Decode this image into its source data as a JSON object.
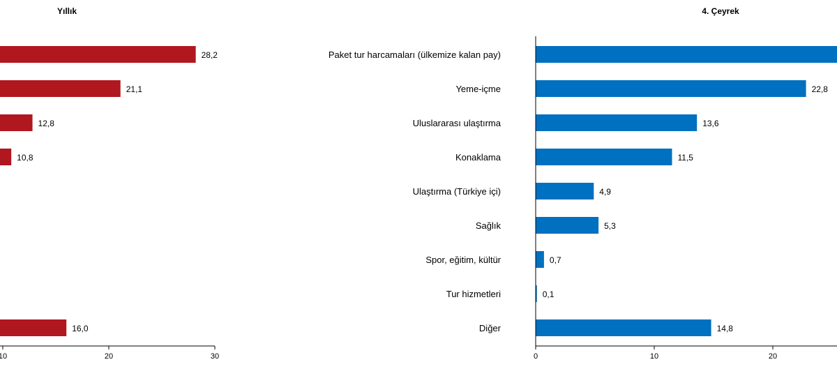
{
  "chart_data": [
    {
      "type": "bar",
      "orientation": "horizontal",
      "title": "Yıllık",
      "categories": [
        "Paket tur harcamaları (ülkemize kalan pay)",
        "Yeme-içme",
        "Uluslararası ulaştırma",
        "Konaklama",
        "Ulaştırma (Türkiye içi)",
        "Sağlık",
        "Spor, eğitim, kültür",
        "Tur hizmetleri",
        "Diğer"
      ],
      "values": [
        28.2,
        21.1,
        12.8,
        10.8,
        null,
        null,
        null,
        null,
        16.0
      ],
      "value_labels": [
        "28,2",
        "21,1",
        "12,8",
        "10,8",
        "",
        "",
        "",
        "",
        "16,0"
      ],
      "xticks": [
        10,
        20,
        30
      ],
      "xlim": [
        3,
        30
      ],
      "color": "#B0171F"
    },
    {
      "type": "bar",
      "orientation": "horizontal",
      "title": "4. Çeyrek",
      "categories": [
        "Paket tur harcamaları (ülkemize kalan pay)",
        "Yeme-içme",
        "Uluslararası ulaştırma",
        "Konaklama",
        "Ulaştırma (Türkiye içi)",
        "Sağlık",
        "Spor, eğitim, kültür",
        "Tur hizmetleri",
        "Diğer"
      ],
      "values": [
        26.5,
        22.8,
        13.6,
        11.5,
        4.9,
        5.3,
        0.7,
        0.1,
        14.8
      ],
      "value_labels": [
        "",
        "22,8",
        "13,6",
        "11,5",
        "4,9",
        "5,3",
        "0,7",
        "0,1",
        "14,8"
      ],
      "xticks": [
        0,
        10,
        20
      ],
      "xlim": [
        0,
        30
      ],
      "color": "#0070C0"
    }
  ]
}
